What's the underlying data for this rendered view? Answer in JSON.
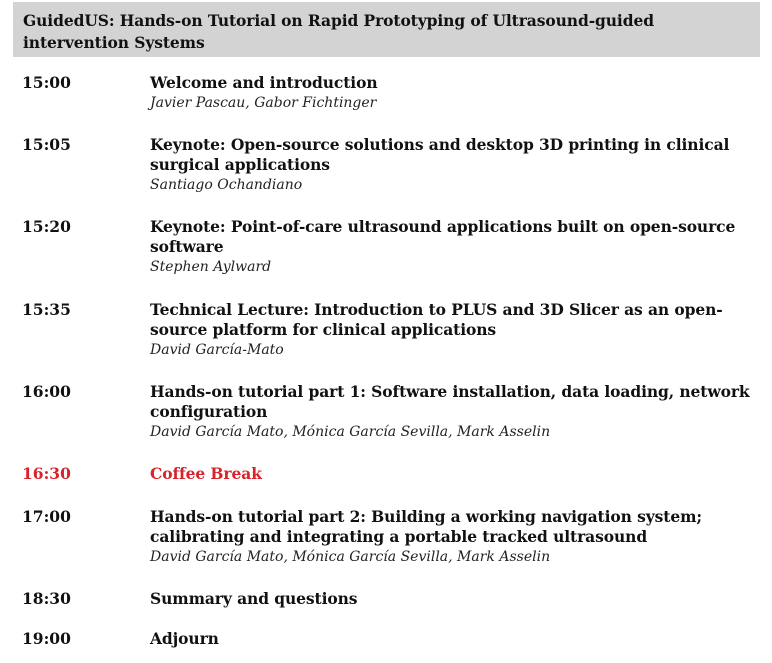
{
  "header": {
    "title": "GuidedUS: Hands-on Tutorial on Rapid Prototyping of Ultrasound-guided intervention Systems"
  },
  "colors": {
    "header_bg": "#d3d3d3",
    "break_red": "#d8232a"
  },
  "sessions": [
    {
      "time": "15:00",
      "title": "Welcome and introduction",
      "speakers": "Javier Pascau, Gabor Fichtinger"
    },
    {
      "time": "15:05",
      "title": "Keynote: Open-source solutions and desktop 3D printing in clinical surgical applications",
      "speakers": "Santiago Ochandiano"
    },
    {
      "time": "15:20",
      "title": "Keynote: Point-of-care ultrasound applications built on open-source software",
      "speakers": "Stephen Aylward"
    },
    {
      "time": "15:35",
      "title": "Technical Lecture: Introduction to PLUS and 3D Slicer as an open-source platform for clinical applications",
      "speakers": "David García-Mato"
    },
    {
      "time": "16:00",
      "title": "Hands-on tutorial part 1: Software installation, data loading, network configuration",
      "speakers": "David García Mato, Mónica García Sevilla, Mark Asselin"
    },
    {
      "time": "16:30",
      "title": "Coffee Break",
      "speakers": ""
    },
    {
      "time": "17:00",
      "title": "Hands-on tutorial part 2: Building a working navigation system; calibrating and integrating a portable tracked ultrasound",
      "speakers": "David García Mato, Mónica García Sevilla, Mark Asselin"
    },
    {
      "time": "18:30",
      "title": "Summary and questions",
      "speakers": ""
    },
    {
      "time": "19:00",
      "title": "Adjourn",
      "speakers": ""
    }
  ]
}
